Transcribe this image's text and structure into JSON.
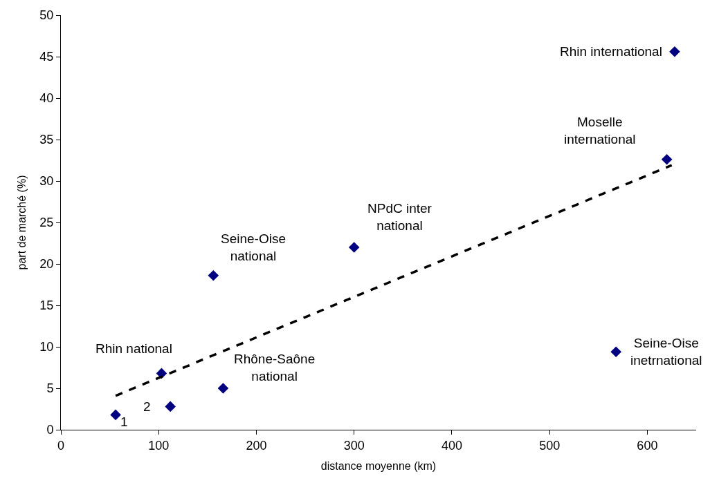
{
  "chart_data": {
    "type": "scatter",
    "xlabel": "distance moyenne (km)",
    "ylabel": "part de marché (%)",
    "xlim": [
      0,
      650
    ],
    "xticks": [
      0,
      100,
      200,
      300,
      400,
      500,
      600
    ],
    "ylim": [
      0,
      50
    ],
    "yticks": [
      0,
      5,
      10,
      15,
      20,
      25,
      30,
      35,
      40,
      45,
      50
    ],
    "series": [
      {
        "color": "#000080",
        "marker": "diamond",
        "x": [
          56,
          112,
          103,
          166,
          156,
          300,
          620,
          628,
          568
        ],
        "values": [
          1.8,
          2.8,
          6.8,
          5.0,
          18.6,
          22.0,
          32.6,
          45.6,
          9.4
        ]
      },
      {
        "type": "line",
        "color": "#000000",
        "marker": "none",
        "line_style": "dashed",
        "x": [
          56,
          625
        ],
        "values": [
          4.1,
          31.9
        ]
      }
    ],
    "annotations": [
      {
        "text": "1",
        "x": 56,
        "y": 1.8
      },
      {
        "text": "2",
        "x": 112,
        "y": 2.8
      },
      {
        "text": "Rhin national",
        "x": 103,
        "y": 6.8
      },
      {
        "text": "Rhône-Saône\nnational",
        "x": 166,
        "y": 5.0
      },
      {
        "text": "Seine-Oise\nnational",
        "x": 156,
        "y": 18.6
      },
      {
        "text": "NPdC inter\nnational",
        "x": 300,
        "y": 22.0
      },
      {
        "text": "Moselle\ninternational",
        "x": 620,
        "y": 32.6
      },
      {
        "text": "Rhin international",
        "x": 628,
        "y": 45.6
      },
      {
        "text": "Seine-Oise\ninetrnational",
        "x": 568,
        "y": 9.4
      }
    ]
  }
}
